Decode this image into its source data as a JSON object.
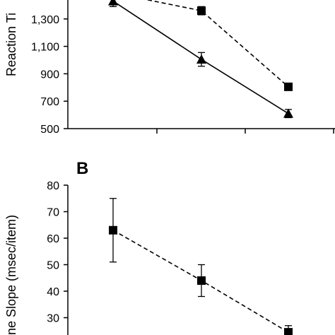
{
  "chart_data": [
    {
      "type": "line",
      "panel_label": "",
      "ylabel": "Reaction Ti",
      "y_ticks": [
        "500",
        "700",
        "900",
        "1,100",
        "1,300"
      ],
      "ylim": [
        500,
        1500
      ],
      "x": [
        1,
        2,
        3
      ],
      "series": [
        {
          "style": "dashed",
          "marker": "square",
          "color": "#000000",
          "values": [
            1490,
            1360,
            805
          ],
          "error": [
            null,
            30,
            15
          ]
        },
        {
          "style": "solid",
          "marker": "triangle",
          "color": "#000000",
          "values": [
            1430,
            1005,
            610
          ],
          "error": [
            40,
            50,
            30
          ]
        }
      ]
    },
    {
      "type": "line",
      "panel_label": "B",
      "ylabel": "ne Slope (msec/item)",
      "y_ticks": [
        "30",
        "40",
        "50",
        "60",
        "70",
        "80"
      ],
      "ylim": [
        20,
        80
      ],
      "x": [
        1,
        2,
        3
      ],
      "series": [
        {
          "style": "dashed",
          "marker": "square",
          "color": "#000000",
          "values": [
            63,
            44,
            24.5
          ],
          "error": [
            12,
            6,
            2.5
          ]
        }
      ]
    }
  ]
}
